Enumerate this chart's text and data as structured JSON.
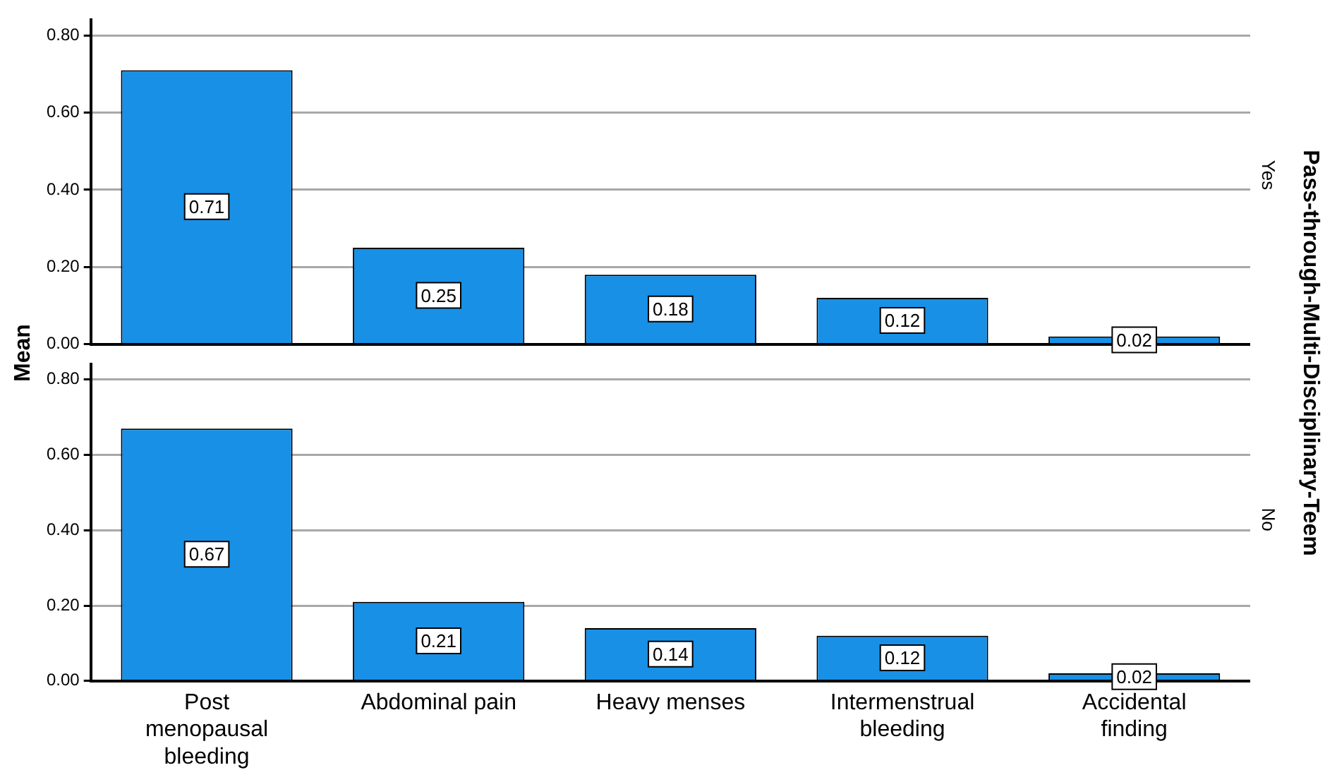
{
  "chart_data": [
    {
      "type": "bar",
      "title": "Yes",
      "ylabel": "Mean",
      "y2label": "Pass-through-Multi-Disciplinary-Teem",
      "categories": [
        null,
        null,
        null,
        null,
        null
      ],
      "values": [
        0.71,
        0.25,
        0.18,
        0.12,
        0.02
      ],
      "color": "#1890e6",
      "data_labels": true,
      "ylim": [
        0,
        0.84
      ],
      "yticks": [
        {
          "value": 0,
          "label": "0.00"
        },
        {
          "value": 0.2,
          "label": "0.20"
        },
        {
          "value": 0.4,
          "label": "0.40"
        },
        {
          "value": 0.6,
          "label": "0.60"
        },
        {
          "value": 0.8,
          "label": "0.80"
        }
      ],
      "grid": "y",
      "legend": false,
      "tick_labels": "y"
    },
    {
      "type": "bar",
      "title": "No",
      "categories": [
        "Post menopausal bleeding",
        "Abdominal pain",
        "Heavy menses",
        "Intermenstrual bleeding",
        "Accidental finding"
      ],
      "values": [
        0.67,
        0.21,
        0.14,
        0.12,
        0.02
      ],
      "color": "#1890e6",
      "data_labels": true,
      "ylim": [
        0,
        0.84
      ],
      "yticks": [
        {
          "value": 0,
          "label": "0.00"
        },
        {
          "value": 0.2,
          "label": "0.20"
        },
        {
          "value": 0.4,
          "label": "0.40"
        },
        {
          "value": 0.6,
          "label": "0.60"
        },
        {
          "value": 0.8,
          "label": "0.80"
        }
      ],
      "grid": "y",
      "legend": false
    }
  ]
}
